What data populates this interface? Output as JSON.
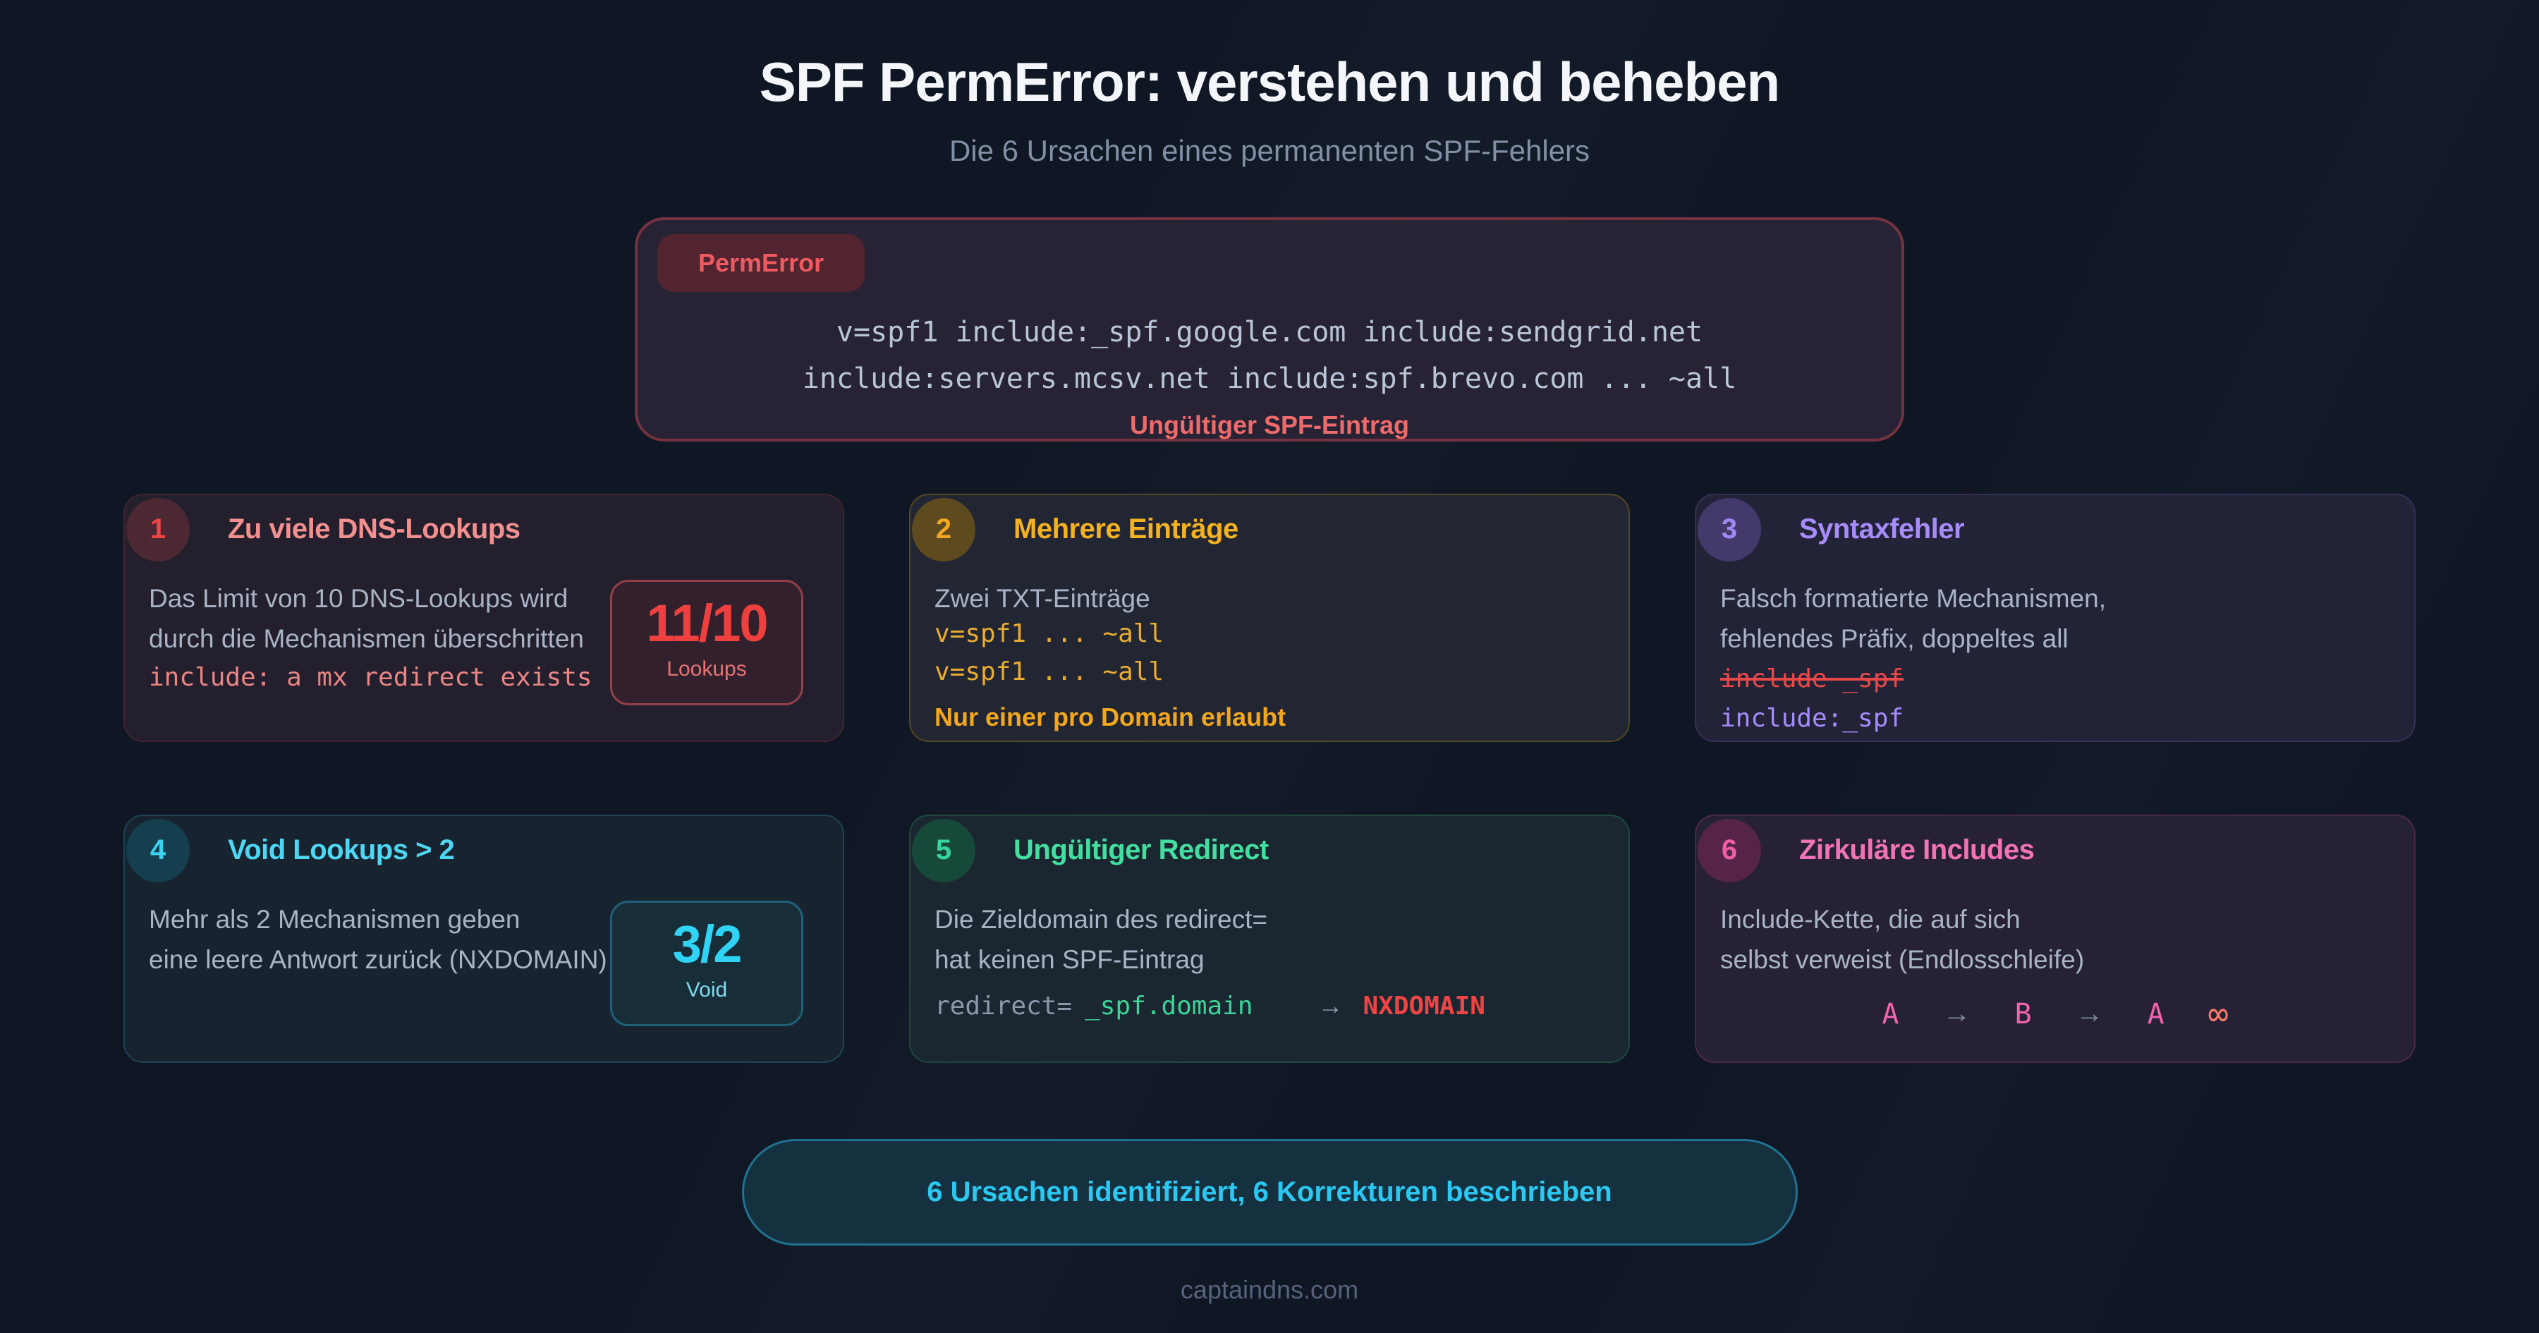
{
  "page": {
    "title": "SPF PermError: verstehen und beheben",
    "subtitle": "Die 6 Ursachen eines permanenten SPF-Fehlers",
    "footer": "captaindns.com"
  },
  "record_box": {
    "badge": "PermError",
    "record_lines": [
      "v=spf1 include:_spf.google.com include:sendgrid.net",
      "include:servers.mcsv.net include:spf.brevo.com ... ~all"
    ],
    "caption": "Ungültiger SPF-Eintrag"
  },
  "cards": [
    {
      "number": "1",
      "title": "Zu viele DNS-Lookups",
      "body": [
        "Das Limit von 10 DNS-Lookups wird",
        "durch die Mechanismen überschritten"
      ],
      "code": "include: a mx redirect exists",
      "stat": {
        "value": "11/10",
        "label": "Lookups"
      },
      "accent": "#ef4646"
    },
    {
      "number": "2",
      "title": "Mehrere Einträge",
      "body": [
        "Zwei TXT-Einträge"
      ],
      "code_lines": [
        "v=spf1 ... ~all",
        "v=spf1 ... ~all"
      ],
      "note": "Nur einer pro Domain erlaubt",
      "accent": "#f2a71e"
    },
    {
      "number": "3",
      "title": "Syntaxfehler",
      "body": [
        "Falsch formatierte Mechanismen,",
        "fehlendes Präfix, doppeltes all"
      ],
      "code_bad": "include _spf",
      "code_good": "include:_spf",
      "accent": "#a78bfa"
    },
    {
      "number": "4",
      "title": "Void Lookups > 2",
      "body": [
        "Mehr als 2 Mechanismen geben",
        "eine leere Antwort zurück (NXDOMAIN)"
      ],
      "stat": {
        "value": "3/2",
        "label": "Void"
      },
      "accent": "#3cd2ee"
    },
    {
      "number": "5",
      "title": "Ungültiger Redirect",
      "body": [
        "Die Zieldomain des redirect=",
        "hat keinen SPF-Eintrag"
      ],
      "code_parts": {
        "label": "redirect=",
        "target": "_spf.domain",
        "arrow": "→",
        "result": "NXDOMAIN"
      },
      "accent": "#38d39e"
    },
    {
      "number": "6",
      "title": "Zirkuläre Includes",
      "body": [
        "Include-Kette, die auf sich",
        "selbst verweist (Endlosschleife)"
      ],
      "chain": {
        "a": "A",
        "arrow1": "→",
        "b": "B",
        "arrow2": "→",
        "a2": "A",
        "infinity": "∞"
      },
      "accent": "#f263ae"
    }
  ],
  "summary": {
    "pill": "6 Ursachen identifiziert, 6 Korrekturen beschrieben"
  },
  "colors": {
    "background": "#0f1624",
    "title_text": "#f4f6f9",
    "subtitle_text": "#8290a5",
    "record_border": "#75323f",
    "record_badge_text": "#ee5a5f",
    "record_text": "#b9c5d8",
    "record_caption": "#ef6b6b",
    "body_text": "#a8b4c6",
    "pill_text": "#2bc8f2",
    "footer_text": "#56637a"
  }
}
